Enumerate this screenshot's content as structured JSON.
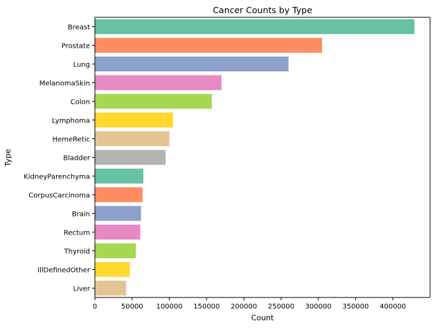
{
  "chart_data": {
    "type": "bar",
    "orientation": "horizontal",
    "title": "Cancer Counts by Type",
    "xlabel": "Count",
    "ylabel": "Type",
    "xlim": [
      0,
      450000
    ],
    "xticks": [
      0,
      50000,
      100000,
      150000,
      200000,
      250000,
      300000,
      350000,
      400000
    ],
    "categories": [
      "Breast",
      "Prostate",
      "Lung",
      "MelanomaSkin",
      "Colon",
      "Lymphoma",
      "HemeRetic",
      "Bladder",
      "KidneyParenchyma",
      "CorpusCarcinoma",
      "Brain",
      "Rectum",
      "Thyroid",
      "IllDefinedOther",
      "Liver"
    ],
    "values": [
      429000,
      305000,
      260000,
      170000,
      157000,
      105000,
      100000,
      95000,
      65000,
      64000,
      62000,
      61000,
      55000,
      47000,
      42000
    ],
    "colors": [
      "#66c2a5",
      "#fc8d62",
      "#8da0cb",
      "#e78ac3",
      "#a6d854",
      "#ffd92f",
      "#e5c494",
      "#b3b3b3",
      "#66c2a5",
      "#fc8d62",
      "#8da0cb",
      "#e78ac3",
      "#a6d854",
      "#ffd92f",
      "#e5c494"
    ],
    "grid": false,
    "legend": "none"
  }
}
